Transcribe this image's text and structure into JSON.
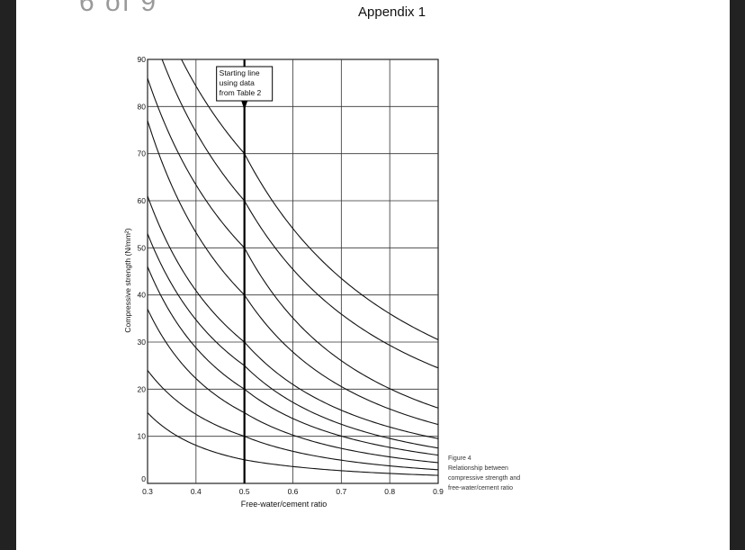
{
  "header": {
    "cutoff_text": "6 of 9",
    "appendix_title": "Appendix 1"
  },
  "figure": {
    "caption_lines": [
      "Figure 4",
      "Relationship between",
      "compressive strength and",
      "free-water/cement ratio"
    ]
  },
  "chart_data": {
    "type": "line",
    "xlabel": "Free-water/cement ratio",
    "ylabel": "Compressive strength (N/mm²)",
    "xlim": [
      0.3,
      0.9
    ],
    "ylim": [
      0,
      90
    ],
    "x_ticks": [
      "0.3",
      "0.4",
      "0.5",
      "0.6",
      "0.7",
      "0.8",
      "0.9"
    ],
    "y_ticks": [
      "0",
      "10",
      "20",
      "30",
      "40",
      "50",
      "60",
      "70",
      "80",
      "90"
    ],
    "grid": true,
    "annotation": {
      "text_lines": [
        "Starting line",
        "using data",
        "from Table 2"
      ],
      "x": 0.5
    },
    "series": [
      {
        "x": [
          0.3,
          0.5,
          0.9
        ],
        "y": [
          15,
          5,
          1.7
        ]
      },
      {
        "x": [
          0.3,
          0.5,
          0.9
        ],
        "y": [
          24,
          10,
          2.9
        ]
      },
      {
        "x": [
          0.3,
          0.5,
          0.9
        ],
        "y": [
          37,
          15,
          4.4
        ]
      },
      {
        "x": [
          0.3,
          0.5,
          0.9
        ],
        "y": [
          46,
          20,
          6
        ]
      },
      {
        "x": [
          0.3,
          0.5,
          0.9
        ],
        "y": [
          53,
          25,
          7.5
        ]
      },
      {
        "x": [
          0.3,
          0.5,
          0.9
        ],
        "y": [
          61,
          30,
          9.5
        ]
      },
      {
        "x": [
          0.3,
          0.5,
          0.9
        ],
        "y": [
          77,
          40,
          12.5
        ]
      },
      {
        "x": [
          0.3,
          0.5,
          0.9
        ],
        "y": [
          86,
          50,
          16
        ]
      },
      {
        "x": [
          0.33,
          0.5,
          0.9
        ],
        "y": [
          90,
          60,
          24.5
        ]
      },
      {
        "x": [
          0.37,
          0.5,
          0.9
        ],
        "y": [
          90,
          70,
          30.5
        ]
      }
    ]
  }
}
